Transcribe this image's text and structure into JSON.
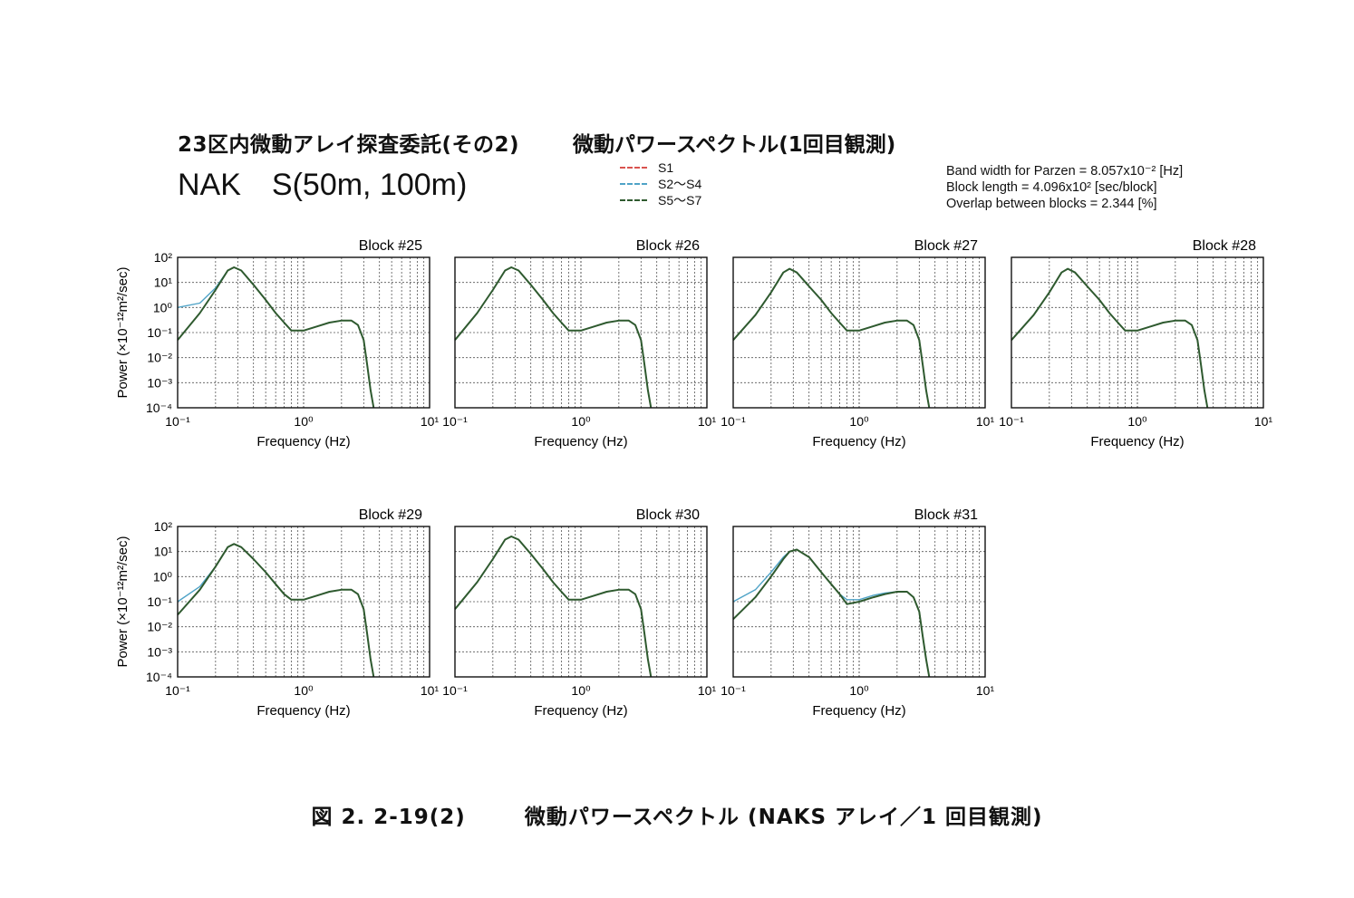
{
  "header": {
    "title_left": "23区内微動アレイ探査委託(その2)",
    "title_right": "微動パワースペクトル(1回目観測)",
    "site": "NAK　S(50m, 100m)"
  },
  "legend": [
    {
      "label": "S1",
      "color": "#d9534f"
    },
    {
      "label": "S2〜S4",
      "color": "#4fa3c7"
    },
    {
      "label": "S5〜S7",
      "color": "#2f5a2f"
    }
  ],
  "params": {
    "bandwidth": "Band width for Parzen = 8.057x10⁻² [Hz]",
    "block_length": "Block length = 4.096x10² [sec/block]",
    "overlap": "Overlap between blocks = 2.344 [%]"
  },
  "axis": {
    "xlabel": "Frequency (Hz)",
    "ylabel": "Power (×10⁻¹²m²/sec)",
    "x_ticks": [
      "10⁻¹",
      "10⁰",
      "10¹"
    ],
    "y_ticks": [
      "10²",
      "10¹",
      "10⁰",
      "10⁻¹",
      "10⁻²",
      "10⁻³",
      "10⁻⁴"
    ]
  },
  "chart_data": [
    {
      "type": "line",
      "title": "Block #25",
      "xscale": "log",
      "yscale": "log",
      "xlim": [
        0.1,
        10
      ],
      "ylim": [
        0.0001,
        100
      ],
      "grid": true,
      "x": [
        0.1,
        0.15,
        0.2,
        0.25,
        0.28,
        0.32,
        0.4,
        0.5,
        0.6,
        0.7,
        0.8,
        1.0,
        1.3,
        1.6,
        2.0,
        2.4,
        2.7,
        3.0,
        3.2,
        3.4,
        3.6
      ],
      "series": [
        {
          "name": "S1",
          "values": [
            0.05,
            0.6,
            5,
            30,
            40,
            30,
            8,
            2,
            0.6,
            0.25,
            0.12,
            0.12,
            0.18,
            0.25,
            0.3,
            0.3,
            0.2,
            0.05,
            0.005,
            0.0005,
            0.0001
          ]
        },
        {
          "name": "S2〜S4",
          "values": [
            1,
            1.5,
            6,
            30,
            40,
            30,
            8,
            2,
            0.6,
            0.25,
            0.12,
            0.12,
            0.18,
            0.25,
            0.3,
            0.3,
            0.2,
            0.05,
            0.005,
            0.0005,
            0.0001
          ]
        },
        {
          "name": "S5〜S7",
          "values": [
            0.05,
            0.6,
            5,
            30,
            40,
            30,
            8,
            2,
            0.6,
            0.25,
            0.12,
            0.12,
            0.18,
            0.25,
            0.3,
            0.3,
            0.2,
            0.05,
            0.005,
            0.0005,
            0.0001
          ]
        }
      ]
    },
    {
      "type": "line",
      "title": "Block #26",
      "xscale": "log",
      "yscale": "log",
      "xlim": [
        0.1,
        10
      ],
      "ylim": [
        0.0001,
        100
      ],
      "grid": true,
      "x": [
        0.1,
        0.15,
        0.2,
        0.25,
        0.28,
        0.32,
        0.4,
        0.5,
        0.6,
        0.7,
        0.8,
        1.0,
        1.3,
        1.6,
        2.0,
        2.4,
        2.7,
        3.0,
        3.2,
        3.4,
        3.6
      ],
      "series": [
        {
          "name": "S1",
          "values": [
            0.05,
            0.6,
            5,
            30,
            40,
            30,
            8,
            2,
            0.6,
            0.25,
            0.12,
            0.12,
            0.18,
            0.25,
            0.3,
            0.3,
            0.2,
            0.05,
            0.005,
            0.0005,
            0.0001
          ]
        },
        {
          "name": "S2〜S4",
          "values": [
            0.05,
            0.6,
            5,
            30,
            40,
            30,
            8,
            2,
            0.6,
            0.25,
            0.12,
            0.12,
            0.18,
            0.25,
            0.3,
            0.3,
            0.2,
            0.05,
            0.005,
            0.0005,
            0.0001
          ]
        },
        {
          "name": "S5〜S7",
          "values": [
            0.05,
            0.6,
            5,
            30,
            40,
            30,
            8,
            2,
            0.6,
            0.25,
            0.12,
            0.12,
            0.18,
            0.25,
            0.3,
            0.3,
            0.2,
            0.05,
            0.005,
            0.0005,
            0.0001
          ]
        }
      ]
    },
    {
      "type": "line",
      "title": "Block #27",
      "xscale": "log",
      "yscale": "log",
      "xlim": [
        0.1,
        10
      ],
      "ylim": [
        0.0001,
        100
      ],
      "grid": true,
      "x": [
        0.1,
        0.15,
        0.2,
        0.25,
        0.28,
        0.32,
        0.4,
        0.5,
        0.6,
        0.7,
        0.8,
        1.0,
        1.3,
        1.6,
        2.0,
        2.4,
        2.7,
        3.0,
        3.2,
        3.4,
        3.6
      ],
      "series": [
        {
          "name": "S1",
          "values": [
            0.05,
            0.5,
            4,
            25,
            35,
            25,
            7,
            2,
            0.6,
            0.25,
            0.12,
            0.12,
            0.18,
            0.25,
            0.3,
            0.3,
            0.2,
            0.05,
            0.005,
            0.0005,
            0.0001
          ]
        },
        {
          "name": "S2〜S4",
          "values": [
            0.05,
            0.5,
            4,
            25,
            35,
            25,
            7,
            2,
            0.6,
            0.25,
            0.12,
            0.12,
            0.18,
            0.25,
            0.3,
            0.3,
            0.2,
            0.05,
            0.005,
            0.0005,
            0.0001
          ]
        },
        {
          "name": "S5〜S7",
          "values": [
            0.05,
            0.5,
            4,
            25,
            35,
            25,
            7,
            2,
            0.6,
            0.25,
            0.12,
            0.12,
            0.18,
            0.25,
            0.3,
            0.3,
            0.2,
            0.05,
            0.005,
            0.0005,
            0.0001
          ]
        }
      ]
    },
    {
      "type": "line",
      "title": "Block #28",
      "xscale": "log",
      "yscale": "log",
      "xlim": [
        0.1,
        10
      ],
      "ylim": [
        0.0001,
        100
      ],
      "grid": true,
      "x": [
        0.1,
        0.15,
        0.2,
        0.25,
        0.28,
        0.32,
        0.4,
        0.5,
        0.6,
        0.7,
        0.8,
        1.0,
        1.3,
        1.6,
        2.0,
        2.4,
        2.7,
        3.0,
        3.2,
        3.4,
        3.6
      ],
      "series": [
        {
          "name": "S1",
          "values": [
            0.05,
            0.5,
            4,
            25,
            35,
            25,
            7,
            2,
            0.6,
            0.25,
            0.12,
            0.12,
            0.18,
            0.25,
            0.3,
            0.3,
            0.2,
            0.05,
            0.005,
            0.0005,
            0.0001
          ]
        },
        {
          "name": "S2〜S4",
          "values": [
            0.05,
            0.5,
            4,
            25,
            35,
            25,
            7,
            2,
            0.6,
            0.25,
            0.12,
            0.12,
            0.18,
            0.25,
            0.3,
            0.3,
            0.2,
            0.05,
            0.005,
            0.0005,
            0.0001
          ]
        },
        {
          "name": "S5〜S7",
          "values": [
            0.05,
            0.5,
            4,
            25,
            35,
            25,
            7,
            2,
            0.6,
            0.25,
            0.12,
            0.12,
            0.18,
            0.25,
            0.3,
            0.3,
            0.2,
            0.05,
            0.005,
            0.0005,
            0.0001
          ]
        }
      ]
    },
    {
      "type": "line",
      "title": "Block #29",
      "xscale": "log",
      "yscale": "log",
      "xlim": [
        0.1,
        10
      ],
      "ylim": [
        0.0001,
        100
      ],
      "grid": true,
      "x": [
        0.1,
        0.15,
        0.2,
        0.25,
        0.28,
        0.32,
        0.4,
        0.5,
        0.6,
        0.7,
        0.8,
        1.0,
        1.3,
        1.6,
        2.0,
        2.4,
        2.7,
        3.0,
        3.2,
        3.4,
        3.6
      ],
      "series": [
        {
          "name": "S1",
          "values": [
            0.03,
            0.3,
            2.5,
            15,
            20,
            15,
            5,
            1.5,
            0.5,
            0.2,
            0.12,
            0.12,
            0.18,
            0.25,
            0.3,
            0.3,
            0.2,
            0.05,
            0.005,
            0.0005,
            0.0001
          ]
        },
        {
          "name": "S2〜S4",
          "values": [
            0.1,
            0.4,
            2.5,
            15,
            20,
            15,
            5,
            1.5,
            0.5,
            0.2,
            0.12,
            0.12,
            0.18,
            0.25,
            0.3,
            0.3,
            0.2,
            0.05,
            0.005,
            0.0005,
            0.0001
          ]
        },
        {
          "name": "S5〜S7",
          "values": [
            0.03,
            0.3,
            2.5,
            15,
            20,
            15,
            5,
            1.5,
            0.5,
            0.2,
            0.12,
            0.12,
            0.18,
            0.25,
            0.3,
            0.3,
            0.2,
            0.05,
            0.005,
            0.0005,
            0.0001
          ]
        }
      ]
    },
    {
      "type": "line",
      "title": "Block #30",
      "xscale": "log",
      "yscale": "log",
      "xlim": [
        0.1,
        10
      ],
      "ylim": [
        0.0001,
        100
      ],
      "grid": true,
      "x": [
        0.1,
        0.15,
        0.2,
        0.25,
        0.28,
        0.32,
        0.4,
        0.5,
        0.6,
        0.7,
        0.8,
        1.0,
        1.3,
        1.6,
        2.0,
        2.4,
        2.7,
        3.0,
        3.2,
        3.4,
        3.6
      ],
      "series": [
        {
          "name": "S1",
          "values": [
            0.05,
            0.6,
            5,
            30,
            40,
            30,
            8,
            2,
            0.6,
            0.25,
            0.12,
            0.12,
            0.18,
            0.25,
            0.3,
            0.3,
            0.2,
            0.05,
            0.005,
            0.0005,
            0.0001
          ]
        },
        {
          "name": "S2〜S4",
          "values": [
            0.05,
            0.6,
            5,
            30,
            40,
            30,
            8,
            2,
            0.6,
            0.25,
            0.12,
            0.12,
            0.18,
            0.25,
            0.3,
            0.3,
            0.2,
            0.05,
            0.005,
            0.0005,
            0.0001
          ]
        },
        {
          "name": "S5〜S7",
          "values": [
            0.05,
            0.6,
            5,
            30,
            40,
            30,
            8,
            2,
            0.6,
            0.25,
            0.12,
            0.12,
            0.18,
            0.25,
            0.3,
            0.3,
            0.2,
            0.05,
            0.005,
            0.0005,
            0.0001
          ]
        }
      ]
    },
    {
      "type": "line",
      "title": "Block #31",
      "xscale": "log",
      "yscale": "log",
      "xlim": [
        0.1,
        10
      ],
      "ylim": [
        0.0001,
        100
      ],
      "grid": true,
      "x": [
        0.1,
        0.15,
        0.2,
        0.25,
        0.28,
        0.32,
        0.4,
        0.5,
        0.6,
        0.7,
        0.8,
        1.0,
        1.3,
        1.6,
        2.0,
        2.4,
        2.7,
        3.0,
        3.2,
        3.4,
        3.6
      ],
      "series": [
        {
          "name": "S1",
          "values": [
            0.02,
            0.15,
            1,
            5,
            10,
            12,
            6,
            1.5,
            0.5,
            0.2,
            0.08,
            0.1,
            0.15,
            0.2,
            0.25,
            0.25,
            0.15,
            0.04,
            0.004,
            0.0005,
            0.0001
          ]
        },
        {
          "name": "S2〜S4",
          "values": [
            0.1,
            0.3,
            1.5,
            6,
            10,
            12,
            6,
            1.5,
            0.5,
            0.2,
            0.12,
            0.12,
            0.18,
            0.22,
            0.25,
            0.25,
            0.15,
            0.04,
            0.004,
            0.0005,
            0.0001
          ]
        },
        {
          "name": "S5〜S7",
          "values": [
            0.02,
            0.15,
            1,
            5,
            10,
            12,
            6,
            1.5,
            0.5,
            0.2,
            0.08,
            0.1,
            0.15,
            0.2,
            0.25,
            0.25,
            0.15,
            0.04,
            0.004,
            0.0005,
            0.0001
          ]
        }
      ]
    }
  ],
  "caption": {
    "figure_no": "図 2. 2-19(2)",
    "text": "微動パワースペクトル (NAKS アレイ／1 回目観測)"
  }
}
